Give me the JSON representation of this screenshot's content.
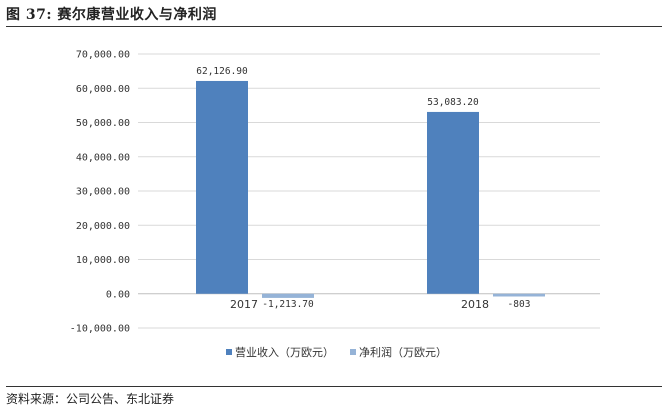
{
  "header": {
    "title": "图 37: 赛尔康营业收入与净利润"
  },
  "footer": {
    "source": "资料来源：公司公告、东北证券"
  },
  "chart_data": {
    "type": "bar",
    "categories": [
      "2017",
      "2018"
    ],
    "series": [
      {
        "name": "营业收入（万欧元）",
        "values": [
          62126.9,
          53083.2
        ],
        "labels": [
          "62,126.90",
          "53,083.20"
        ],
        "color": "#4f81bd"
      },
      {
        "name": "净利润（万欧元）",
        "values": [
          -1213.7,
          -803
        ],
        "labels": [
          "-1,213.70",
          "-803"
        ],
        "color": "#95b3d7"
      }
    ],
    "ylim": [
      -10000,
      70000
    ],
    "yticks": [
      70000,
      60000,
      50000,
      40000,
      30000,
      20000,
      10000,
      0,
      -10000
    ],
    "ytick_labels": [
      "70,000.00",
      "60,000.00",
      "50,000.00",
      "40,000.00",
      "30,000.00",
      "20,000.00",
      "10,000.00",
      "0.00",
      "-10,000.00"
    ],
    "grid": true,
    "legend": "bottom",
    "title": "",
    "xlabel": "",
    "ylabel": ""
  }
}
